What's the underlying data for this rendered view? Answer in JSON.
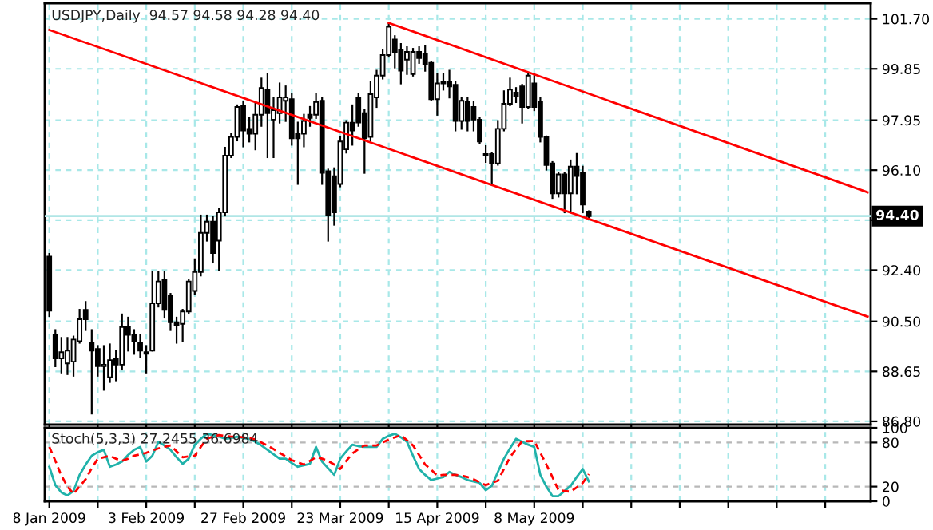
{
  "chart_data": [
    {
      "type": "candlestick",
      "title": "USDJPY,Daily  94.57 94.58 94.28 94.40",
      "color": "#000000",
      "ohlc": [
        [
          92.9,
          93.0,
          90.7,
          90.9
        ],
        [
          90.0,
          90.18,
          88.84,
          89.13
        ],
        [
          89.13,
          89.89,
          88.61,
          89.36
        ],
        [
          88.95,
          89.89,
          88.55,
          89.42
        ],
        [
          89.01,
          89.94,
          88.49,
          89.83
        ],
        [
          89.77,
          90.93,
          89.71,
          90.58
        ],
        [
          90.93,
          91.22,
          90.18,
          90.58
        ],
        [
          89.71,
          90.18,
          87.09,
          89.42
        ],
        [
          89.48,
          89.59,
          88.49,
          88.84
        ],
        [
          88.84,
          89.59,
          87.97,
          88.9
        ],
        [
          88.43,
          89.65,
          88.26,
          89.07
        ],
        [
          89.13,
          89.42,
          88.32,
          88.9
        ],
        [
          88.9,
          90.76,
          88.72,
          90.29
        ],
        [
          90.29,
          90.64,
          89.42,
          90.0
        ],
        [
          90.0,
          90.18,
          89.3,
          89.77
        ],
        [
          89.71,
          90.0,
          89.19,
          89.42
        ],
        [
          89.3,
          89.59,
          88.61,
          89.36
        ],
        [
          89.42,
          92.33,
          89.42,
          91.17
        ],
        [
          91.17,
          92.33,
          91.05,
          91.98
        ],
        [
          92.04,
          92.33,
          90.64,
          90.93
        ],
        [
          91.46,
          91.52,
          90.18,
          90.47
        ],
        [
          90.47,
          90.64,
          89.71,
          90.35
        ],
        [
          90.41,
          90.93,
          89.77,
          90.87
        ],
        [
          90.87,
          92.04,
          90.8,
          91.98
        ],
        [
          91.63,
          92.8,
          91.52,
          92.33
        ],
        [
          92.33,
          94.42,
          92.2,
          93.78
        ],
        [
          93.78,
          94.42,
          93.49,
          94.19
        ],
        [
          94.19,
          94.37,
          92.68,
          93.03
        ],
        [
          93.49,
          94.66,
          92.39,
          94.54
        ],
        [
          94.54,
          96.93,
          94.42,
          96.64
        ],
        [
          96.64,
          97.45,
          96.58,
          97.33
        ],
        [
          97.33,
          98.5,
          97.2,
          98.44
        ],
        [
          98.5,
          98.62,
          96.98,
          97.57
        ],
        [
          97.63,
          98.03,
          97.16,
          97.45
        ],
        [
          97.45,
          98.62,
          96.87,
          98.15
        ],
        [
          98.15,
          99.49,
          97.74,
          99.14
        ],
        [
          99.08,
          99.66,
          96.58,
          98.21
        ],
        [
          97.97,
          98.79,
          96.58,
          98.32
        ],
        [
          98.21,
          99.31,
          97.86,
          98.79
        ],
        [
          98.67,
          99.2,
          97.92,
          98.79
        ],
        [
          98.73,
          98.91,
          97.04,
          97.28
        ],
        [
          97.45,
          97.86,
          95.59,
          97.28
        ],
        [
          97.45,
          98.15,
          96.98,
          97.92
        ],
        [
          98.15,
          98.44,
          97.74,
          98.03
        ],
        [
          98.15,
          98.91,
          98.03,
          98.62
        ],
        [
          98.67,
          98.79,
          95.59,
          96.0
        ],
        [
          96.06,
          96.12,
          93.49,
          94.42
        ],
        [
          95.88,
          96.17,
          94.08,
          94.54
        ],
        [
          95.59,
          97.33,
          95.5,
          97.16
        ],
        [
          96.87,
          97.92,
          96.75,
          97.86
        ],
        [
          97.86,
          98.5,
          97.04,
          97.57
        ],
        [
          98.79,
          98.91,
          97.74,
          97.86
        ],
        [
          98.21,
          98.32,
          96.0,
          97.28
        ],
        [
          97.33,
          99.37,
          97.16,
          98.91
        ],
        [
          98.79,
          99.78,
          98.44,
          99.6
        ],
        [
          99.6,
          100.54,
          99.49,
          100.36
        ],
        [
          100.36,
          101.53,
          100.3,
          101.41
        ],
        [
          100.94,
          101.06,
          99.9,
          100.48
        ],
        [
          100.54,
          100.77,
          99.31,
          99.78
        ],
        [
          100.19,
          100.65,
          99.66,
          100.48
        ],
        [
          99.66,
          100.59,
          99.6,
          100.48
        ],
        [
          100.48,
          100.65,
          100.07,
          100.25
        ],
        [
          100.42,
          100.71,
          99.78,
          100.01
        ],
        [
          100.07,
          100.1,
          98.7,
          98.73
        ],
        [
          98.73,
          99.66,
          98.15,
          99.31
        ],
        [
          99.31,
          99.66,
          99.08,
          99.37
        ],
        [
          99.37,
          99.78,
          98.79,
          99.2
        ],
        [
          99.26,
          99.37,
          97.57,
          97.92
        ],
        [
          97.92,
          98.79,
          97.63,
          98.67
        ],
        [
          98.62,
          98.79,
          97.57,
          97.92
        ],
        [
          98.44,
          98.62,
          97.57,
          97.97
        ],
        [
          97.97,
          98.03,
          97.1,
          97.16
        ],
        [
          96.7,
          96.99,
          96.4,
          96.64
        ],
        [
          96.7,
          96.75,
          95.59,
          96.35
        ],
        [
          96.35,
          97.92,
          96.3,
          97.63
        ],
        [
          97.63,
          99.02,
          97.57,
          98.56
        ],
        [
          98.56,
          99.49,
          98.5,
          99.08
        ],
        [
          98.97,
          99.14,
          98.62,
          98.85
        ],
        [
          99.2,
          99.26,
          97.86,
          98.44
        ],
        [
          98.44,
          99.66,
          98.4,
          99.6
        ],
        [
          99.31,
          99.66,
          98.32,
          98.44
        ],
        [
          98.62,
          98.79,
          97.16,
          97.33
        ],
        [
          97.33,
          97.35,
          96.12,
          96.29
        ],
        [
          96.35,
          96.4,
          95.07,
          95.24
        ],
        [
          95.24,
          96.0,
          95.12,
          95.94
        ],
        [
          95.94,
          96.0,
          94.54,
          95.24
        ],
        [
          95.24,
          96.46,
          94.54,
          96.23
        ],
        [
          96.23,
          96.7,
          95.24,
          95.88
        ],
        [
          96.0,
          96.23,
          94.54,
          94.83
        ],
        [
          94.57,
          94.58,
          94.28,
          94.4
        ],
        null,
        null,
        null,
        null,
        null,
        null,
        null,
        null,
        null,
        null,
        null,
        null,
        null,
        null,
        null,
        null,
        null,
        null,
        null,
        null,
        null,
        null,
        null,
        null,
        null,
        null,
        null,
        null,
        null,
        null,
        null,
        null,
        null,
        null,
        null,
        null,
        null,
        null,
        null,
        null,
        null,
        null,
        null,
        null,
        null,
        null
      ],
      "series": [
        {
          "type": "line",
          "color": "#ff0000",
          "values": [
            null,
            null,
            null,
            null,
            null,
            null,
            null,
            null,
            null,
            null,
            null,
            null,
            null,
            null,
            null,
            null,
            null,
            null,
            null,
            null,
            null,
            null,
            null,
            null,
            null,
            null,
            null,
            null,
            null,
            null,
            null,
            null,
            null,
            null,
            null,
            null,
            null,
            null,
            null,
            null,
            null,
            null,
            null,
            null,
            null,
            null,
            null,
            null,
            null,
            null,
            null,
            null,
            null,
            null,
            null,
            null,
            101.55,
            null,
            null,
            null,
            null,
            null,
            null,
            null,
            null,
            null,
            null,
            null,
            null,
            null,
            null,
            null,
            null,
            null,
            null,
            null,
            null,
            null,
            null,
            null,
            null,
            null,
            null,
            null,
            null,
            null,
            null,
            null,
            null,
            null,
            null,
            null,
            null,
            null,
            null,
            null,
            null,
            null,
            null,
            null,
            null,
            null,
            null,
            null,
            null,
            null,
            null,
            null,
            null,
            null,
            null,
            null,
            null,
            null,
            null,
            null,
            null,
            null,
            null,
            null,
            null,
            null,
            null,
            null,
            null,
            null,
            null,
            null,
            null,
            null,
            null,
            null,
            null,
            null,
            null,
            95.28
          ]
        },
        {
          "type": "line",
          "color": "#ff0000",
          "values": [
            101.29,
            null,
            null,
            null,
            null,
            null,
            null,
            null,
            null,
            null,
            null,
            null,
            null,
            null,
            null,
            null,
            null,
            null,
            null,
            null,
            null,
            null,
            null,
            null,
            null,
            null,
            null,
            null,
            null,
            null,
            null,
            null,
            null,
            null,
            null,
            null,
            null,
            null,
            null,
            null,
            null,
            null,
            null,
            null,
            null,
            null,
            null,
            null,
            null,
            null,
            null,
            null,
            null,
            null,
            null,
            null,
            null,
            null,
            null,
            null,
            null,
            null,
            null,
            null,
            null,
            null,
            null,
            null,
            null,
            null,
            null,
            null,
            null,
            null,
            null,
            null,
            null,
            null,
            null,
            null,
            null,
            null,
            null,
            null,
            null,
            null,
            null,
            null,
            null,
            null,
            null,
            null,
            null,
            null,
            null,
            null,
            null,
            null,
            null,
            null,
            null,
            null,
            null,
            null,
            null,
            null,
            null,
            null,
            null,
            null,
            null,
            null,
            null,
            null,
            null,
            null,
            null,
            null,
            null,
            null,
            null,
            null,
            null,
            null,
            null,
            null,
            null,
            null,
            null,
            null,
            null,
            null,
            null,
            null,
            null,
            90.68
          ]
        }
      ],
      "ref_lines": [
        {
          "axis": "y",
          "value": 94.4,
          "label": "94.40",
          "color": "#b0e6e6"
        }
      ],
      "ylim": [
        86.68,
        102.28
      ],
      "yticks": [
        {
          "value": 86.8,
          "label": "86.80"
        },
        88.65,
        {
          "value": 90.5,
          "label": "90.50"
        },
        {
          "value": 92.4,
          "label": "92.40"
        },
        {
          "value": 94.25,
          "label": null
        },
        {
          "value": 96.1,
          "label": "96.10"
        },
        97.95,
        99.85,
        {
          "value": 101.7,
          "label": "101.70"
        }
      ],
      "grid": true,
      "tick_labels": "y"
    },
    {
      "type": "line",
      "title": "Stoch(5,3,3) 27.2455 36.6984",
      "series": [
        {
          "color": "#20b2aa",
          "line_style": "solid",
          "values": [
            47,
            22,
            12,
            8,
            14,
            36,
            50,
            62,
            67,
            70,
            47,
            50,
            54,
            63,
            70,
            74,
            54,
            62,
            81,
            76,
            70,
            60,
            51,
            58,
            77,
            85,
            92,
            90,
            88,
            85,
            86,
            88,
            86,
            85,
            81,
            76,
            70,
            64,
            58,
            58,
            52,
            47,
            49,
            51,
            74,
            54,
            45,
            36,
            58,
            68,
            77,
            75,
            74,
            74,
            74,
            85,
            89,
            92,
            87,
            81,
            62,
            44,
            36,
            29,
            31,
            33,
            40,
            36,
            33,
            29,
            27,
            25,
            15,
            21,
            40,
            58,
            72,
            85,
            81,
            77,
            74,
            36,
            20,
            7,
            7,
            14,
            21,
            33,
            44,
            27,
            null,
            null,
            null,
            null,
            null,
            null,
            null,
            null,
            null,
            null,
            null,
            null,
            null,
            null,
            null,
            null,
            null,
            null,
            null,
            null,
            null,
            null,
            null,
            null,
            null,
            null,
            null,
            null,
            null,
            null,
            null,
            null,
            null,
            null,
            null,
            null,
            null,
            null,
            null,
            null,
            null,
            null,
            null,
            null,
            null,
            null
          ]
        },
        {
          "color": "#ff0000",
          "line_style": "dashed",
          "values": [
            74,
            55,
            35,
            20,
            10,
            20,
            30,
            45,
            58,
            60,
            62,
            58,
            55,
            58,
            62,
            64,
            66,
            69,
            72,
            74,
            76,
            68,
            60,
            61,
            62,
            74,
            85,
            88,
            90,
            89,
            88,
            88,
            87,
            86,
            84,
            80,
            76,
            71,
            66,
            61,
            56,
            53,
            50,
            55,
            60,
            58,
            55,
            50,
            44,
            55,
            65,
            71,
            76,
            76,
            76,
            80,
            84,
            87,
            90,
            83,
            76,
            63,
            50,
            43,
            35,
            36,
            36,
            36,
            35,
            33,
            30,
            26,
            22,
            25,
            28,
            44,
            60,
            71,
            82,
            82,
            82,
            66,
            50,
            33,
            15,
            14,
            13,
            19,
            25,
            37,
            null,
            null,
            null,
            null,
            null,
            null,
            null,
            null,
            null,
            null,
            null,
            null,
            null,
            null,
            null,
            null,
            null,
            null,
            null,
            null,
            null,
            null,
            null,
            null,
            null,
            null,
            null,
            null,
            null,
            null,
            null,
            null,
            null,
            null,
            null,
            null,
            null,
            null,
            null,
            null,
            null,
            null,
            null,
            null,
            null,
            null
          ]
        }
      ],
      "categories": [
        "8 Jan 2009",
        null,
        null,
        null,
        null,
        null,
        null,
        null,
        null,
        null,
        null,
        null,
        null,
        null,
        null,
        null,
        "3 Feb 2009",
        null,
        null,
        null,
        null,
        null,
        null,
        null,
        null,
        null,
        null,
        null,
        null,
        null,
        null,
        null,
        "27 Feb 2009",
        null,
        null,
        null,
        null,
        null,
        null,
        null,
        null,
        null,
        null,
        null,
        null,
        null,
        null,
        null,
        "23 Mar 2009",
        null,
        null,
        null,
        null,
        null,
        null,
        null,
        null,
        null,
        null,
        null,
        null,
        null,
        null,
        null,
        "15 Apr 2009",
        null,
        null,
        null,
        null,
        null,
        null,
        null,
        null,
        null,
        null,
        null,
        null,
        null,
        null,
        null,
        "8 May 2009",
        null,
        null,
        null,
        null,
        null,
        null,
        null,
        null,
        null,
        null,
        null,
        null,
        null,
        null,
        null,
        null,
        null,
        null,
        null,
        null,
        null,
        null,
        null,
        null,
        null,
        null,
        null,
        null,
        null,
        null,
        null,
        null,
        null,
        null,
        null,
        null,
        null,
        null,
        null,
        null,
        null,
        null,
        null,
        null,
        null,
        null,
        null,
        null,
        null,
        null,
        null,
        null,
        null,
        null,
        null
      ],
      "ylim": [
        0,
        100
      ],
      "yticks": [
        0,
        20,
        80,
        100
      ],
      "grid": true,
      "tick_labels": true
    }
  ]
}
